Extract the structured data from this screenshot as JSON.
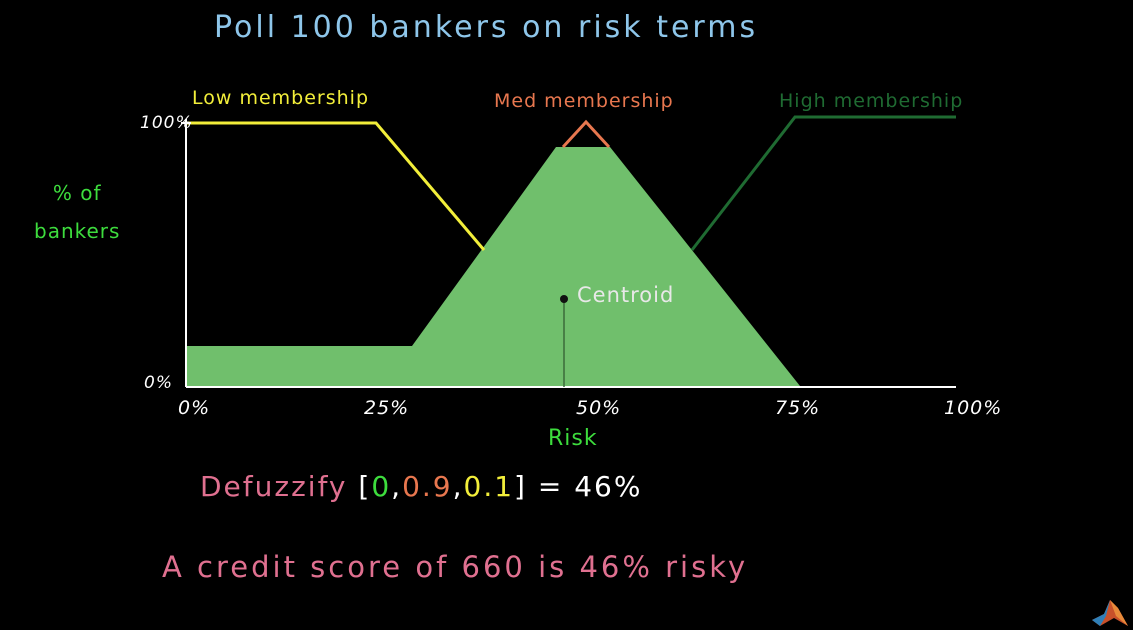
{
  "title": "Poll 100 bankers on risk terms",
  "y_axis": {
    "label_line1": "% of",
    "label_line2": "bankers",
    "tick_top": "100%",
    "tick_bottom": "0%"
  },
  "x_axis": {
    "label": "Risk",
    "ticks": [
      "0%",
      "25%",
      "50%",
      "75%",
      "100%"
    ]
  },
  "curves": {
    "low": {
      "label": "Low membership",
      "color": "#f2ee3a"
    },
    "med": {
      "label": "Med membership",
      "color": "#e8774f"
    },
    "high": {
      "label": "High membership",
      "color": "#1f6b32"
    }
  },
  "aggregate_fill_color": "#70bf6c",
  "centroid_label": "Centroid",
  "defuzz": {
    "prefix": "Defuzzify",
    "open": "[",
    "v0": "0",
    "sep1": ",",
    "v1": "0.9",
    "sep2": ",",
    "v2": "0.1",
    "close": "]",
    "result": " = 46%"
  },
  "conclusion": "A credit score of 660 is 46% risky",
  "logo": "matlab-logo-icon"
}
